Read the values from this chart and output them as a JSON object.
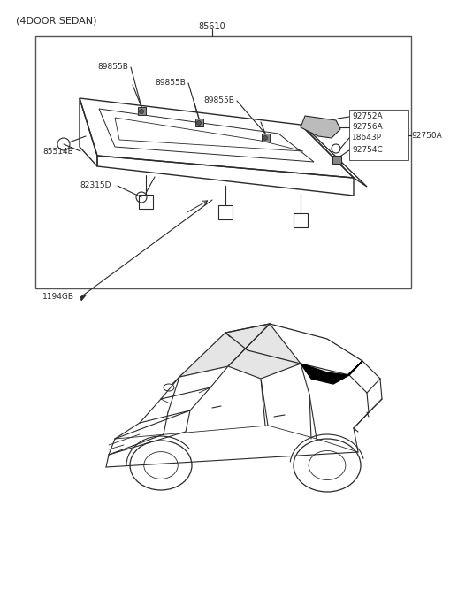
{
  "bg_color": "#ffffff",
  "line_color": "#2a2a2a",
  "title": "(4DOOR SEDAN)",
  "label_85610": "85610",
  "label_89855B_1": "89855B",
  "label_89855B_2": "89855B",
  "label_89855B_3": "89855B",
  "label_92752A": "92752A",
  "label_92756A": "92756A",
  "label_92750A": "92750A",
  "label_18643P": "18643P",
  "label_92754C": "92754C",
  "label_85514B": "85514B",
  "label_82315D": "82315D",
  "label_1194GB": "1194GB",
  "fontsize_title": 8,
  "fontsize_label": 6.5
}
